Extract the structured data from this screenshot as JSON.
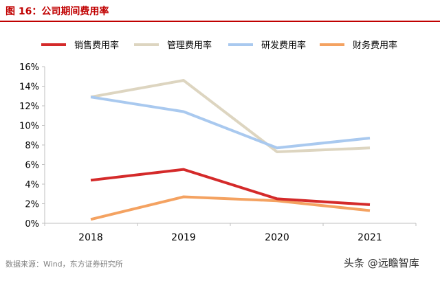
{
  "figure_title": "图 16：公司期间费用率",
  "source": "数据来源：Wind，东方证券研究所",
  "watermark": "头条 @远瞻智库",
  "chart_data": {
    "type": "line",
    "title": "",
    "xlabel": "",
    "ylabel": "",
    "x": [
      "2018",
      "2019",
      "2020",
      "2021"
    ],
    "ylim": [
      0,
      16
    ],
    "yticks": [
      0,
      2,
      4,
      6,
      8,
      10,
      12,
      14,
      16
    ],
    "ytick_labels": [
      "0%",
      "2%",
      "4%",
      "6%",
      "8%",
      "10%",
      "12%",
      "14%",
      "16%"
    ],
    "grid": false,
    "legend_position": "top",
    "series": [
      {
        "name": "销售费用率",
        "color": "#d42a2a",
        "values": [
          4.4,
          5.5,
          2.5,
          1.9
        ]
      },
      {
        "name": "管理费用率",
        "color": "#ddd5c0",
        "values": [
          12.9,
          14.6,
          7.3,
          7.7
        ]
      },
      {
        "name": "研发费用率",
        "color": "#a9c9ef",
        "values": [
          12.9,
          11.4,
          7.7,
          8.7
        ]
      },
      {
        "name": "财务费用率",
        "color": "#f4a261",
        "values": [
          0.4,
          2.7,
          2.3,
          1.3
        ]
      }
    ]
  }
}
